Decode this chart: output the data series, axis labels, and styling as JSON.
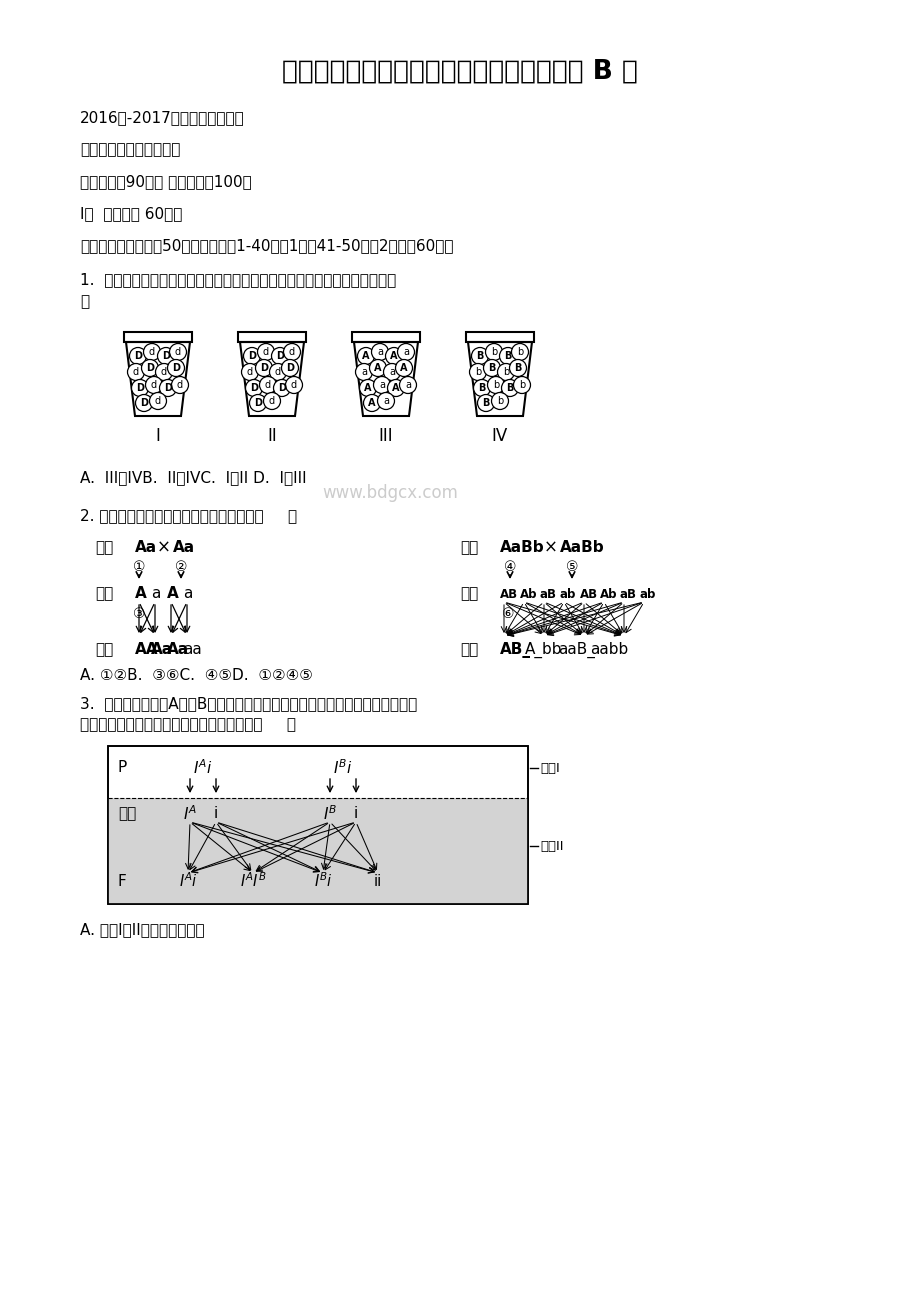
{
  "title": "河北省冀州市高二生物下学期期末考试试题 B 卷",
  "line1": "2016年-2017年下学期期末考试",
  "line2": "高二年级生物试题（理）",
  "line3": "考试时间：90分钟 试题分数：100分",
  "line4": "I卷  （选择题 60分）",
  "line5": "一、选择题（本题共50小题，单选，1-40每题1分，41-50每题2分，共60分）",
  "q1_line1": "1.  某同学欲利用如图所示装置模拟基因的分离定律，他应该选择的装置有（",
  "q1_line2": "）",
  "q1_answer": "A.  III和IVB.  II和IVC.  I和II D.  I和III",
  "q1_watermark": "www.bdgcx.com",
  "q2": "2. 如图所示，哪些过程可以发生基因重组（     ）",
  "q2_answer": "A. ①②B.  ③⑥C.  ④⑤D.  ①②④⑤",
  "q3_line1": "3.  图是某对血型为A型和B型的夫妇生出孩子的可能基因型的遗传图解，图示过",
  "q3_line2": "程与基因传递所遵循遗传规律的对应关系是（     ）",
  "q3_answer": "A. 过程I和II，基因分离定律",
  "background_color": "#ffffff",
  "text_color": "#000000"
}
